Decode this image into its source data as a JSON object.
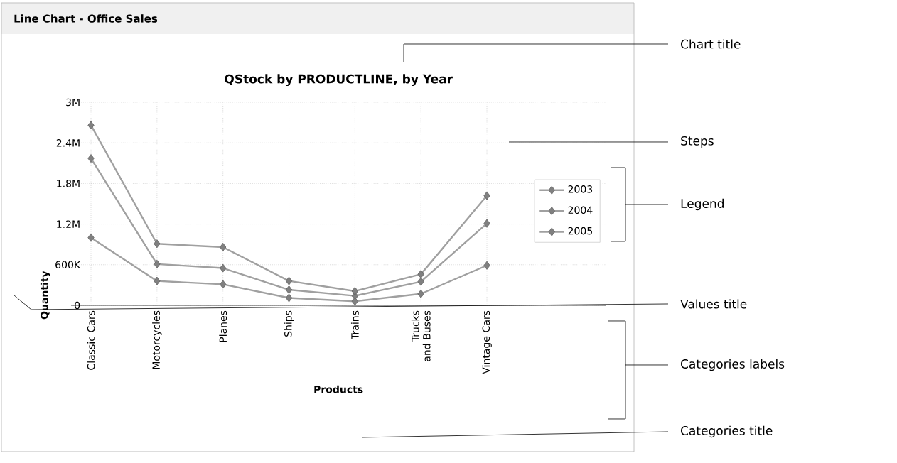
{
  "chart_data": {
    "type": "line",
    "title": "QStock by PRODUCTLINE, by Year",
    "subtitle": "Line Chart - Office Sales",
    "xlabel": "Products",
    "ylabel": "Quantity",
    "categories": [
      "Classic Cars",
      "Motorcycles",
      "Planes",
      "Ships",
      "Trains",
      "Trucks and Buses",
      "Vintage Cars"
    ],
    "series": [
      {
        "name": "2003",
        "color": "#a0a0a0",
        "values": [
          2170000,
          610000,
          550000,
          230000,
          140000,
          350000,
          1210000
        ]
      },
      {
        "name": "2004",
        "color": "#a0a0a0",
        "values": [
          2660000,
          910000,
          860000,
          360000,
          210000,
          460000,
          1620000
        ]
      },
      {
        "name": "2005",
        "color": "#a0a0a0",
        "values": [
          1000000,
          360000,
          310000,
          110000,
          60000,
          170000,
          590000
        ]
      }
    ],
    "ylim": [
      0,
      3000000
    ],
    "yticks": [
      0,
      {
        "value": 600000,
        "label": "600K"
      },
      {
        "value": 1200000,
        "label": "1.2M"
      },
      {
        "value": 1800000,
        "label": "1.8M"
      },
      {
        "value": 2400000,
        "label": "2.4M"
      },
      {
        "value": 3000000,
        "label": "3M"
      }
    ],
    "grid": true,
    "legend": "right",
    "marker": "diamond",
    "line_style": "solid",
    "annotations": [
      "Chart title",
      "Steps",
      "Legend",
      "Values title",
      "Categories labels",
      "Categories title"
    ]
  }
}
